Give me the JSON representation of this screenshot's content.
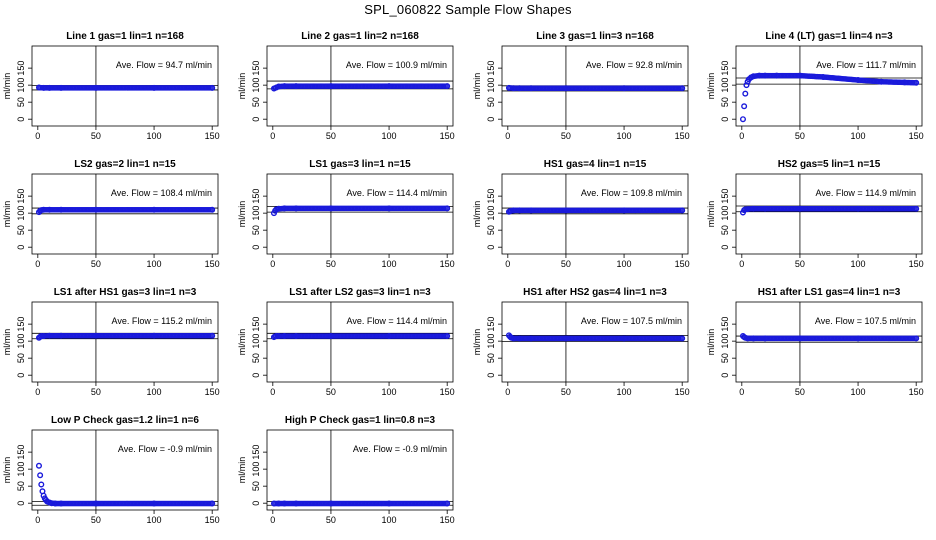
{
  "figure": {
    "title": "SPL_060822  Sample Flow Shapes",
    "marker_color": "#1a1adb",
    "line_color": "#000000",
    "vline_x": 50
  },
  "panel_axes": {
    "xticks": [
      0,
      50,
      100,
      150
    ],
    "yticks": [
      0,
      50,
      100,
      150
    ],
    "xlim": [
      -5,
      155
    ],
    "ylim": [
      -20,
      215
    ],
    "ylabel": "ml/min",
    "annotation_prefix": "Ave. Flow = ",
    "annotation_unit": "ml/min"
  },
  "chart_data": [
    {
      "type": "scatter",
      "title": "Line 1 gas=1 lin=1 n=168",
      "annotation": "94.7",
      "band": [
        86,
        99
      ],
      "x": [
        1,
        5,
        10,
        20,
        50,
        100,
        150
      ],
      "y": [
        93,
        92,
        92,
        92,
        92,
        92,
        92
      ]
    },
    {
      "type": "scatter",
      "title": "Line 2 gas=1 lin=2 n=168",
      "annotation": "100.9",
      "band": [
        89,
        112
      ],
      "x": [
        1,
        3,
        5,
        10,
        20,
        50,
        100,
        150
      ],
      "y": [
        90,
        93,
        96,
        97,
        97,
        97,
        97,
        97
      ]
    },
    {
      "type": "scatter",
      "title": "Line 3 gas=1 lin=3 n=168",
      "annotation": "92.8",
      "band": [
        83,
        98
      ],
      "x": [
        1,
        5,
        10,
        20,
        50,
        100,
        150
      ],
      "y": [
        92,
        91,
        91,
        91,
        91,
        91,
        91
      ]
    },
    {
      "type": "scatter",
      "title": "Line 4 (LT) gas=1 lin=4 n=3",
      "annotation": "111.7",
      "band": [
        103,
        121
      ],
      "x": [
        1,
        2,
        3,
        4,
        5,
        6,
        8,
        10,
        15,
        20,
        30,
        50,
        70,
        100,
        120,
        140,
        150
      ],
      "y": [
        0,
        38,
        75,
        100,
        110,
        117,
        123,
        126,
        128,
        128,
        128,
        128,
        124,
        115,
        110,
        108,
        107
      ]
    },
    {
      "type": "scatter",
      "title": "LS2 gas=2 lin=1 n=15",
      "annotation": "108.4",
      "band": [
        98,
        115
      ],
      "x": [
        1,
        2,
        3,
        5,
        10,
        20,
        50,
        100,
        150
      ],
      "y": [
        103,
        107,
        109,
        110,
        110,
        110,
        110,
        110,
        110
      ]
    },
    {
      "type": "scatter",
      "title": "LS1 gas=3 lin=1 n=15",
      "annotation": "114.4",
      "band": [
        103,
        120
      ],
      "x": [
        1,
        2,
        3,
        5,
        10,
        20,
        50,
        100,
        150
      ],
      "y": [
        100,
        107,
        111,
        113,
        114,
        114,
        114,
        114,
        114
      ]
    },
    {
      "type": "scatter",
      "title": "HS1 gas=4 lin=1 n=15",
      "annotation": "109.8",
      "band": [
        98,
        115
      ],
      "x": [
        1,
        2,
        3,
        5,
        10,
        20,
        50,
        100,
        150
      ],
      "y": [
        104,
        106,
        107,
        108,
        108,
        108,
        108,
        108,
        108
      ]
    },
    {
      "type": "scatter",
      "title": "HS2 gas=5 lin=1 n=15",
      "annotation": "114.9",
      "band": [
        104,
        121
      ],
      "x": [
        1,
        2,
        3,
        5,
        10,
        20,
        50,
        100,
        150
      ],
      "y": [
        102,
        109,
        111,
        112,
        113,
        113,
        113,
        113,
        113
      ]
    },
    {
      "type": "scatter",
      "title": "LS1 after HS1 gas=3 lin=1 n=3",
      "annotation": "115.2",
      "band": [
        107,
        123
      ],
      "x": [
        1,
        2,
        3,
        5,
        10,
        20,
        50,
        100,
        150
      ],
      "y": [
        110,
        113,
        115,
        115,
        116,
        116,
        116,
        116,
        116
      ]
    },
    {
      "type": "scatter",
      "title": "LS1 after LS2 gas=3 lin=1 n=3",
      "annotation": "114.4",
      "band": [
        107,
        123
      ],
      "x": [
        1,
        2,
        3,
        5,
        10,
        20,
        50,
        100,
        150
      ],
      "y": [
        112,
        114,
        115,
        115,
        115,
        115,
        115,
        115,
        115
      ]
    },
    {
      "type": "scatter",
      "title": "HS1 after HS2 gas=4 lin=1 n=3",
      "annotation": "107.5",
      "band": [
        99,
        117
      ],
      "x": [
        1,
        2,
        3,
        5,
        10,
        20,
        50,
        100,
        150
      ],
      "y": [
        117,
        113,
        110,
        108,
        108,
        108,
        108,
        108,
        108
      ]
    },
    {
      "type": "scatter",
      "title": "HS1 after LS1 gas=4 lin=1 n=3",
      "annotation": "107.5",
      "band": [
        97,
        115
      ],
      "x": [
        1,
        2,
        3,
        5,
        10,
        20,
        50,
        100,
        150
      ],
      "y": [
        115,
        112,
        110,
        108,
        108,
        108,
        108,
        108,
        108
      ]
    },
    {
      "type": "scatter",
      "title": "Low P Check gas=1.2 lin=1 n=6",
      "annotation": "-0.9",
      "band": [
        -6,
        5
      ],
      "x": [
        1,
        2,
        3,
        4,
        5,
        6,
        7,
        8,
        10,
        12,
        15,
        20,
        50,
        100,
        150
      ],
      "y": [
        110,
        82,
        55,
        35,
        22,
        14,
        9,
        5,
        2,
        0,
        -1,
        -1,
        -1,
        -1,
        -1
      ]
    },
    {
      "type": "scatter",
      "title": "High P Check gas=1 lin=0.8 n=3",
      "annotation": "-0.9",
      "band": [
        -6,
        5
      ],
      "x": [
        1,
        5,
        10,
        20,
        50,
        100,
        150
      ],
      "y": [
        -1,
        -1,
        -1,
        -1,
        -1,
        -1,
        -1
      ]
    }
  ]
}
